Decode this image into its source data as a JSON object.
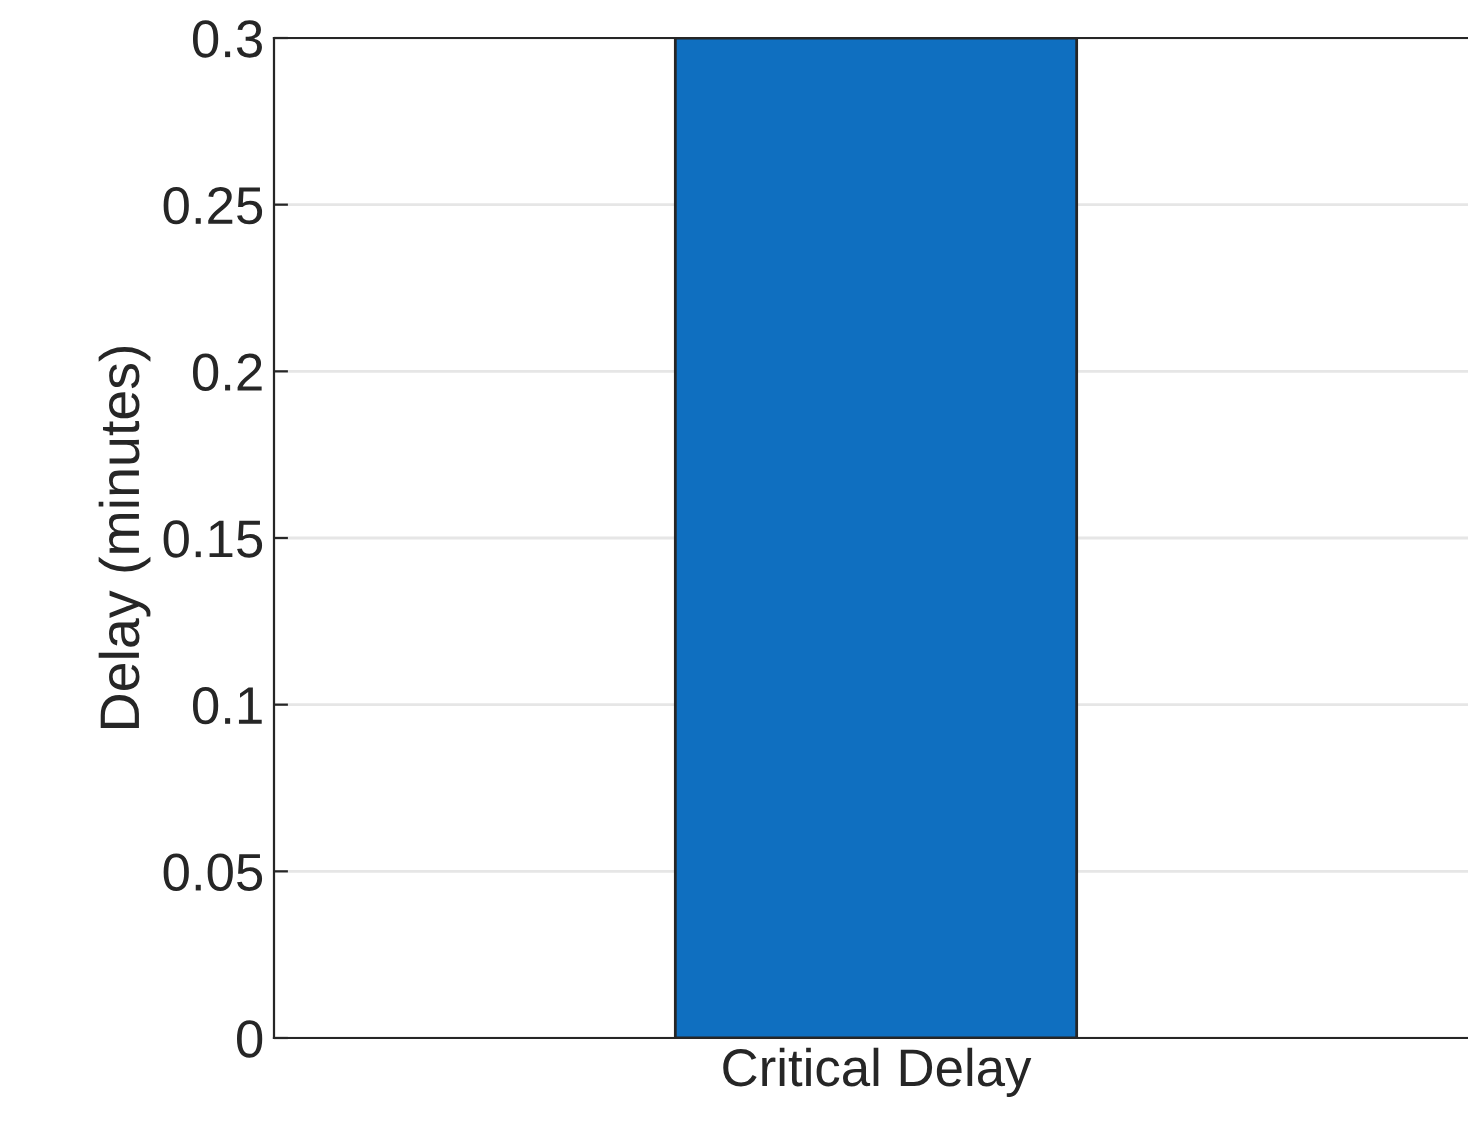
{
  "chart_data": {
    "type": "bar",
    "ylabel": "Delay (minutes)",
    "categories": [
      "Critical Delay"
    ],
    "values": [
      0.3
    ],
    "color": "#0f6fc0",
    "ylim": [
      0,
      0.3
    ],
    "yticks": [
      0,
      0.05,
      0.1,
      0.15,
      0.2,
      0.25,
      0.3
    ],
    "grid": "y"
  }
}
